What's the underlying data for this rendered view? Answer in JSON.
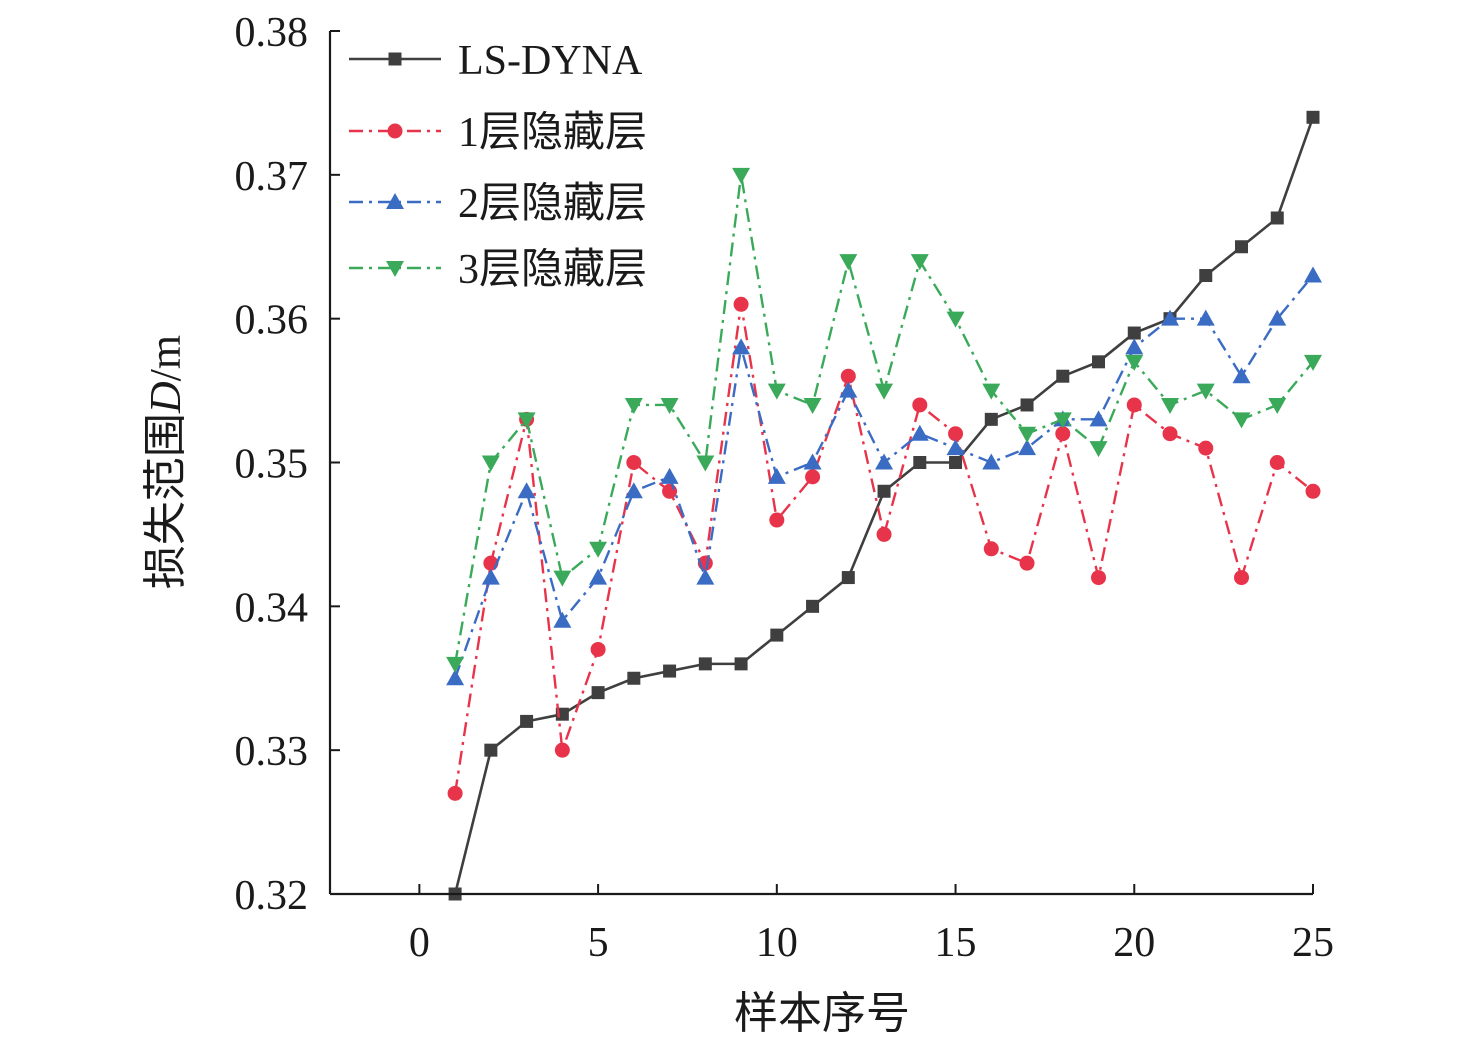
{
  "chart_data": {
    "type": "line",
    "xlabel": "样本序号",
    "ylabel_prefix": "损失范围",
    "ylabel_var": "D",
    "ylabel_unit": "/m",
    "xlim": [
      -2.5,
      25
    ],
    "ylim": [
      0.32,
      0.38
    ],
    "xticks": [
      0,
      5,
      10,
      15,
      20,
      25
    ],
    "xtick_labels": [
      "0",
      "5",
      "10",
      "15",
      "20",
      "25"
    ],
    "yticks": [
      0.32,
      0.33,
      0.34,
      0.35,
      0.36,
      0.37,
      0.38
    ],
    "ytick_labels": [
      "0.32",
      "0.33",
      "0.34",
      "0.35",
      "0.36",
      "0.37",
      "0.38"
    ],
    "grid": false,
    "legend_position": "top-left",
    "x": [
      1,
      2,
      3,
      4,
      5,
      6,
      7,
      8,
      9,
      10,
      11,
      12,
      13,
      14,
      15,
      16,
      17,
      18,
      19,
      20,
      21,
      22,
      23,
      24,
      25
    ],
    "series": [
      {
        "name": "LS-DYNA",
        "color": "#3f3f3f",
        "marker": "square",
        "dash": "solid",
        "values": [
          0.32,
          0.33,
          0.332,
          0.3325,
          0.334,
          0.335,
          0.3355,
          0.336,
          0.336,
          0.338,
          0.34,
          0.342,
          0.348,
          0.35,
          0.35,
          0.353,
          0.354,
          0.356,
          0.357,
          0.359,
          0.36,
          0.363,
          0.365,
          0.367,
          0.374
        ]
      },
      {
        "name": "1层隐藏层",
        "color": "#e8344a",
        "marker": "circle",
        "dash": "dashdot",
        "values": [
          0.327,
          0.343,
          0.353,
          0.33,
          0.337,
          0.35,
          0.348,
          0.343,
          0.361,
          0.346,
          0.349,
          0.356,
          0.345,
          0.354,
          0.352,
          0.344,
          0.343,
          0.352,
          0.342,
          0.354,
          0.352,
          0.351,
          0.342,
          0.35,
          0.348
        ]
      },
      {
        "name": "2层隐藏层",
        "color": "#3b6cc4",
        "marker": "triangle-up",
        "dash": "dashdot",
        "values": [
          0.335,
          0.342,
          0.348,
          0.339,
          0.342,
          0.348,
          0.349,
          0.342,
          0.358,
          0.349,
          0.35,
          0.355,
          0.35,
          0.352,
          0.351,
          0.35,
          0.351,
          0.353,
          0.353,
          0.358,
          0.36,
          0.36,
          0.356,
          0.36,
          0.363
        ]
      },
      {
        "name": "3层隐藏层",
        "color": "#3aaa5a",
        "marker": "triangle-down",
        "dash": "dashdot",
        "values": [
          0.336,
          0.35,
          0.353,
          0.342,
          0.344,
          0.354,
          0.354,
          0.35,
          0.37,
          0.355,
          0.354,
          0.364,
          0.355,
          0.364,
          0.36,
          0.355,
          0.352,
          0.353,
          0.351,
          0.357,
          0.354,
          0.355,
          0.353,
          0.354,
          0.357
        ]
      }
    ]
  }
}
